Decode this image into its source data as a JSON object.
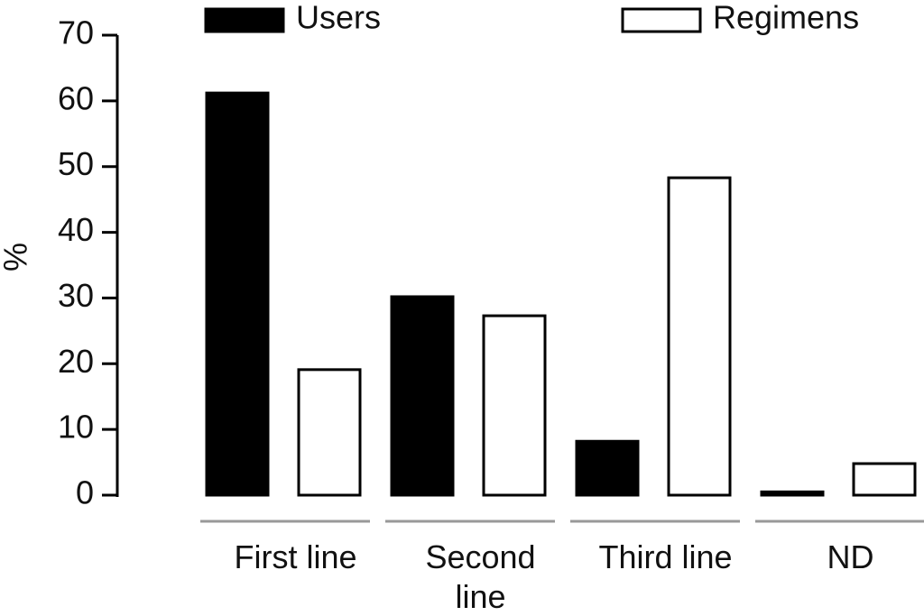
{
  "chart_data": {
    "type": "bar",
    "y_label": "%",
    "categories": [
      "First line",
      "Second line",
      "Third line",
      "ND"
    ],
    "series": [
      {
        "name": "Users",
        "color": "#000000",
        "values": [
          61.2,
          30.2,
          8.2,
          0.5
        ]
      },
      {
        "name": "Regimens",
        "color": "#ffffff",
        "values": [
          19.1,
          27.3,
          48.3,
          4.8
        ]
      }
    ],
    "ylim": [
      0,
      70
    ],
    "yticks": [
      0,
      10,
      20,
      30,
      40,
      50,
      60,
      70
    ],
    "grid": false,
    "legend": "top"
  }
}
